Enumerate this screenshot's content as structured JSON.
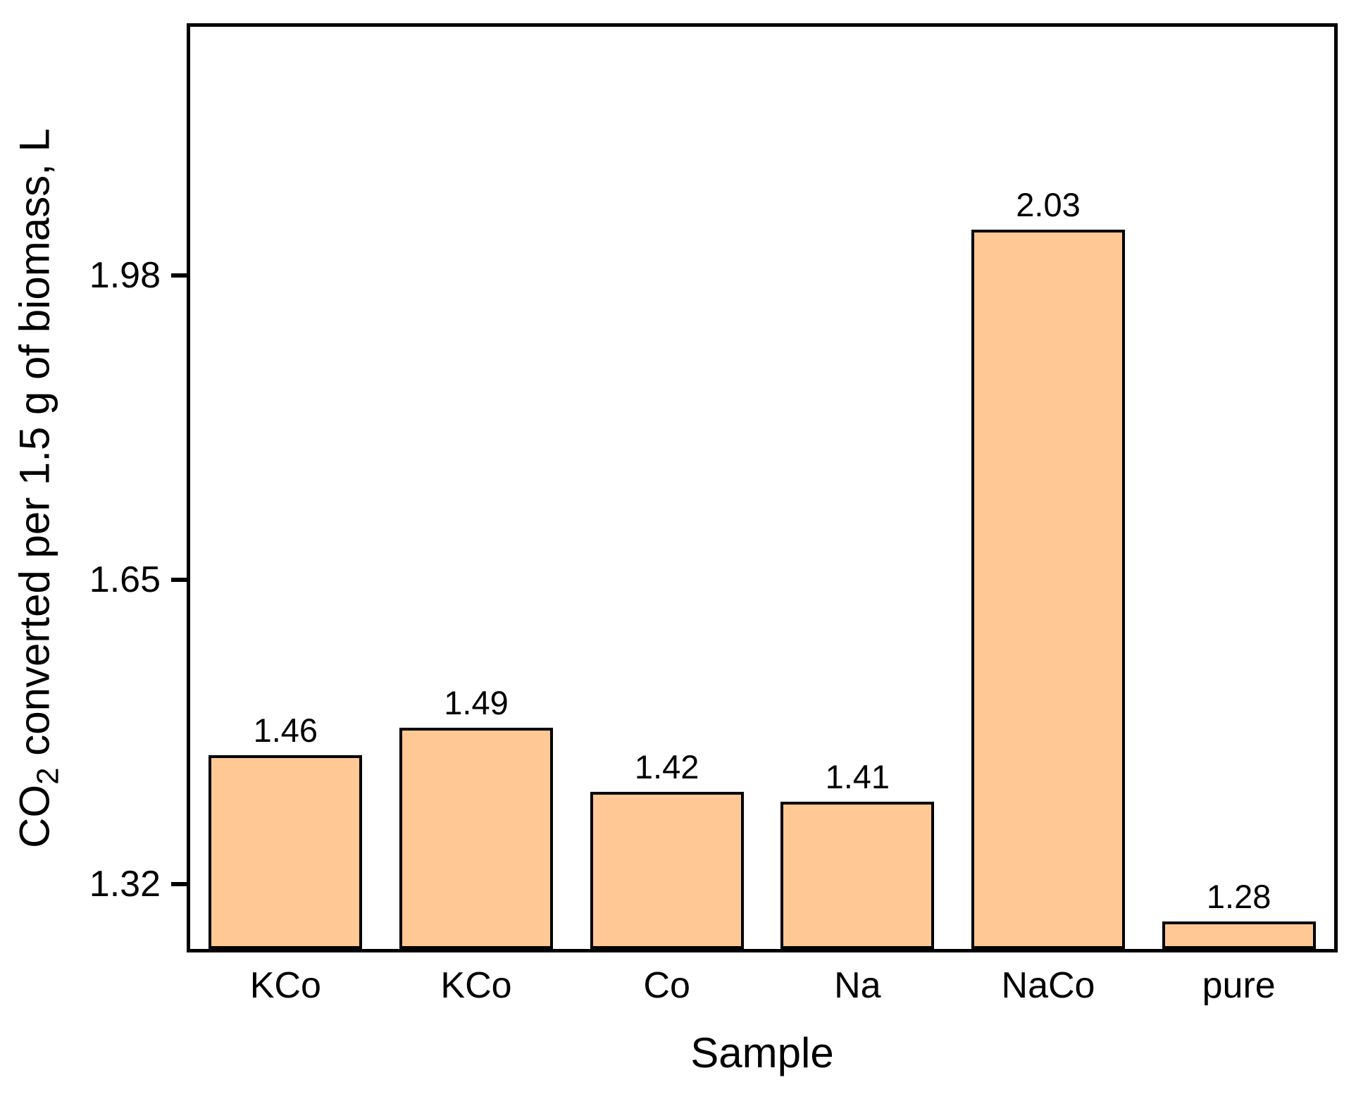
{
  "chart_data": {
    "type": "bar",
    "categories": [
      "KCo",
      "KCo",
      "Co",
      "Na",
      "NaCo",
      "pure"
    ],
    "values": [
      1.46,
      1.49,
      1.42,
      1.41,
      2.03,
      1.28
    ],
    "value_labels": [
      "1.46",
      "1.49",
      "1.42",
      "1.41",
      "2.03",
      "1.28"
    ],
    "title": "",
    "xlabel": "Sample",
    "ylabel": "CO2 converted per 1.5 g of biomass, L",
    "ylabel_prefix": "CO",
    "ylabel_subscript": "2",
    "ylabel_rest": " converted per 1.5 g of biomass, L",
    "yticks": [
      1.32,
      1.65,
      1.98
    ],
    "ytick_labels": [
      "1.32",
      "1.65",
      "1.98"
    ],
    "ylim": [
      1.25,
      2.25
    ],
    "grid": false,
    "legend": "none",
    "bar_fill_color": "#FFC894",
    "bar_border_color": "#000000",
    "axis_color": "#000000",
    "background_color": "#FFFFFF"
  }
}
